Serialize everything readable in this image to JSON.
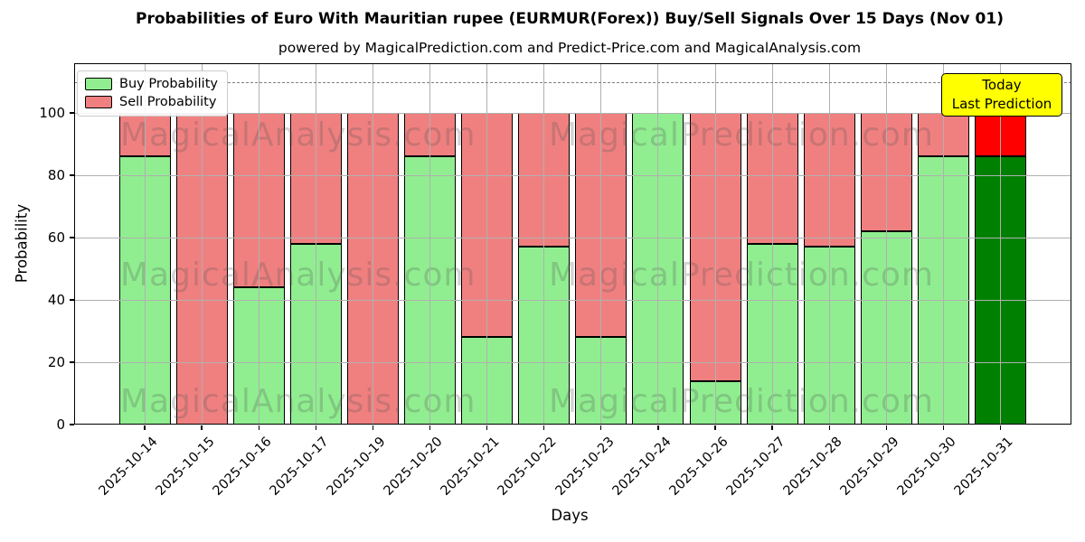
{
  "title": "Probabilities of Euro With Mauritian rupee (EURMUR(Forex)) Buy/Sell Signals Over 15 Days (Nov 01)",
  "subtitle": "powered by MagicalPrediction.com and Predict-Price.com and MagicalAnalysis.com",
  "legend": {
    "buy_label": "Buy Probability",
    "sell_label": "Sell Probability"
  },
  "annotation": {
    "line1": "Today",
    "line2": "Last Prediction"
  },
  "watermarks": [
    "MagicalAnalysis.com",
    "MagicalPrediction.com"
  ],
  "axes": {
    "xlabel": "Days",
    "ylabel": "Probability",
    "yticks": [
      0,
      20,
      40,
      60,
      80,
      100
    ],
    "ylim": [
      0,
      116
    ],
    "threshold_line": 110,
    "grid": true
  },
  "colors": {
    "buy": "#90ee90",
    "sell": "#f08080",
    "today_buy": "#008000",
    "today_sell": "#ff0000",
    "bar_edge": "#000000",
    "grid": "#b0b0b0",
    "annotation_bg": "#ffff00",
    "threshold": "#7f7f7f"
  },
  "chart_data": {
    "type": "bar",
    "stacked": true,
    "title": "Probabilities of Euro With Mauritian rupee (EURMUR(Forex)) Buy/Sell Signals Over 15 Days (Nov 01)",
    "xlabel": "Days",
    "ylabel": "Probability",
    "ylim": [
      0,
      116
    ],
    "legend_position": "upper left",
    "threshold_dashed_line_y": 110,
    "categories": [
      "2025-10-14",
      "2025-10-15",
      "2025-10-16",
      "2025-10-17",
      "2025-10-19",
      "2025-10-20",
      "2025-10-21",
      "2025-10-22",
      "2025-10-23",
      "2025-10-24",
      "2025-10-26",
      "2025-10-27",
      "2025-10-28",
      "2025-10-29",
      "2025-10-30",
      "2025-10-31"
    ],
    "series": [
      {
        "name": "Buy Probability",
        "color": "#90ee90",
        "values": [
          86,
          0,
          44,
          58,
          0,
          86,
          28,
          57,
          28,
          100,
          14,
          58,
          57,
          62,
          86,
          86
        ]
      },
      {
        "name": "Sell Probability",
        "color": "#f08080",
        "values": [
          14,
          100,
          56,
          42,
          100,
          14,
          72,
          43,
          72,
          0,
          86,
          42,
          43,
          38,
          14,
          14
        ]
      }
    ],
    "today_bar": {
      "category": "2025-10-31",
      "buy": 86,
      "sell": 14,
      "buy_color": "#008000",
      "sell_color": "#ff0000"
    }
  }
}
